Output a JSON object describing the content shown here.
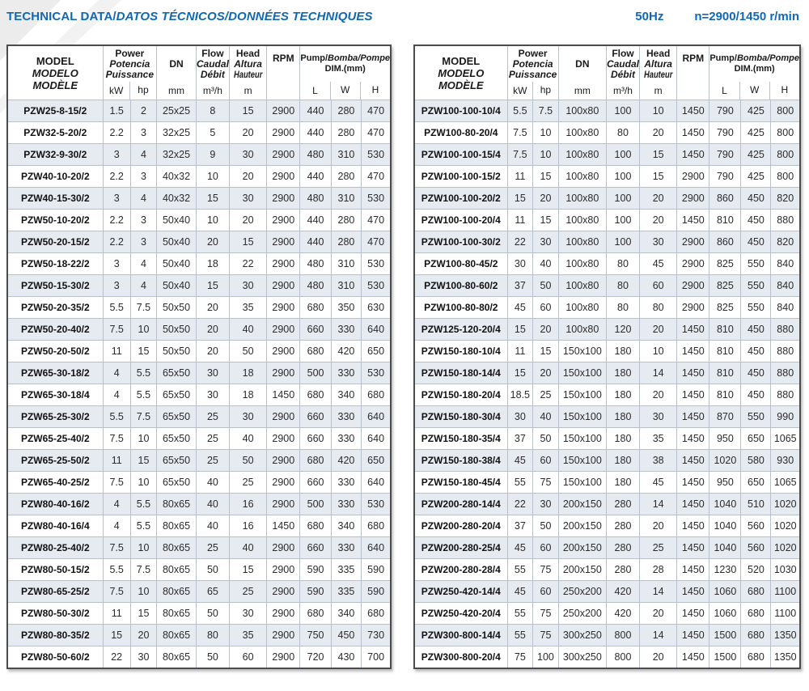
{
  "page": {
    "title_en": "TECHNICAL DATA/",
    "title_intl": "DATOS TÉCNICOS/DONNÉES TECHNIQUES",
    "frequency": "50Hz",
    "speed": "n=2900/1450 r/min",
    "accent_color": "#0f68b4",
    "row_stripe_color": "#e6eaf1"
  },
  "header": {
    "model": [
      "MODEL",
      "MODELO",
      "MODÈLE"
    ],
    "power": [
      "Power",
      "Potencia",
      "Puissance"
    ],
    "power_units": [
      "kW",
      "hp"
    ],
    "dn": "DN",
    "dn_unit": "mm",
    "flow": [
      "Flow",
      "Caudal",
      "Débit"
    ],
    "flow_unit": "m³/h",
    "head": [
      "Head",
      "Altura",
      "Hauteur"
    ],
    "head_unit": "m",
    "rpm": "RPM",
    "dim_en": "Pump/",
    "dim_intl": "Bomba/Pompe",
    "dim_sub": "DIM.(mm)",
    "dim_units": [
      "L",
      "W",
      "H"
    ]
  },
  "left_table": {
    "rows": [
      [
        "PZW25-8-15/2",
        "1.5",
        "2",
        "25x25",
        "8",
        "15",
        "2900",
        "440",
        "280",
        "470"
      ],
      [
        "PZW32-5-20/2",
        "2.2",
        "3",
        "32x25",
        "5",
        "20",
        "2900",
        "440",
        "280",
        "470"
      ],
      [
        "PZW32-9-30/2",
        "3",
        "4",
        "32x25",
        "9",
        "30",
        "2900",
        "480",
        "310",
        "530"
      ],
      [
        "PZW40-10-20/2",
        "2.2",
        "3",
        "40x32",
        "10",
        "20",
        "2900",
        "440",
        "280",
        "470"
      ],
      [
        "PZW40-15-30/2",
        "3",
        "4",
        "40x32",
        "15",
        "30",
        "2900",
        "480",
        "310",
        "530"
      ],
      [
        "PZW50-10-20/2",
        "2.2",
        "3",
        "50x40",
        "10",
        "20",
        "2900",
        "440",
        "280",
        "470"
      ],
      [
        "PZW50-20-15/2",
        "2.2",
        "3",
        "50x40",
        "20",
        "15",
        "2900",
        "440",
        "280",
        "470"
      ],
      [
        "PZW50-18-22/2",
        "3",
        "4",
        "50x40",
        "18",
        "22",
        "2900",
        "480",
        "310",
        "530"
      ],
      [
        "PZW50-15-30/2",
        "3",
        "4",
        "50x40",
        "15",
        "30",
        "2900",
        "480",
        "310",
        "530"
      ],
      [
        "PZW50-20-35/2",
        "5.5",
        "7.5",
        "50x50",
        "20",
        "35",
        "2900",
        "680",
        "350",
        "630"
      ],
      [
        "PZW50-20-40/2",
        "7.5",
        "10",
        "50x50",
        "20",
        "40",
        "2900",
        "660",
        "330",
        "640"
      ],
      [
        "PZW50-20-50/2",
        "11",
        "15",
        "50x50",
        "20",
        "50",
        "2900",
        "680",
        "420",
        "650"
      ],
      [
        "PZW65-30-18/2",
        "4",
        "5.5",
        "65x50",
        "30",
        "18",
        "2900",
        "500",
        "330",
        "530"
      ],
      [
        "PZW65-30-18/4",
        "4",
        "5.5",
        "65x50",
        "30",
        "18",
        "1450",
        "680",
        "340",
        "680"
      ],
      [
        "PZW65-25-30/2",
        "5.5",
        "7.5",
        "65x50",
        "25",
        "30",
        "2900",
        "660",
        "330",
        "640"
      ],
      [
        "PZW65-25-40/2",
        "7.5",
        "10",
        "65x50",
        "25",
        "40",
        "2900",
        "660",
        "330",
        "640"
      ],
      [
        "PZW65-25-50/2",
        "11",
        "15",
        "65x50",
        "25",
        "50",
        "2900",
        "680",
        "420",
        "650"
      ],
      [
        "PZW65-40-25/2",
        "7.5",
        "10",
        "65x50",
        "40",
        "25",
        "2900",
        "660",
        "330",
        "640"
      ],
      [
        "PZW80-40-16/2",
        "4",
        "5.5",
        "80x65",
        "40",
        "16",
        "2900",
        "500",
        "330",
        "530"
      ],
      [
        "PZW80-40-16/4",
        "4",
        "5.5",
        "80x65",
        "40",
        "16",
        "1450",
        "680",
        "340",
        "680"
      ],
      [
        "PZW80-25-40/2",
        "7.5",
        "10",
        "80x65",
        "25",
        "40",
        "2900",
        "660",
        "330",
        "640"
      ],
      [
        "PZW80-50-15/2",
        "5.5",
        "7.5",
        "80x65",
        "50",
        "15",
        "2900",
        "590",
        "335",
        "590"
      ],
      [
        "PZW80-65-25/2",
        "7.5",
        "10",
        "80x65",
        "65",
        "25",
        "2900",
        "590",
        "335",
        "590"
      ],
      [
        "PZW80-50-30/2",
        "11",
        "15",
        "80x65",
        "50",
        "30",
        "2900",
        "680",
        "340",
        "680"
      ],
      [
        "PZW80-80-35/2",
        "15",
        "20",
        "80x65",
        "80",
        "35",
        "2900",
        "750",
        "450",
        "730"
      ],
      [
        "PZW80-50-60/2",
        "22",
        "30",
        "80x65",
        "50",
        "60",
        "2900",
        "720",
        "430",
        "700"
      ]
    ]
  },
  "right_table": {
    "rows": [
      [
        "PZW100-100-10/4",
        "5.5",
        "7.5",
        "100x80",
        "100",
        "10",
        "1450",
        "790",
        "425",
        "800"
      ],
      [
        "PZW100-80-20/4",
        "7.5",
        "10",
        "100x80",
        "80",
        "20",
        "1450",
        "790",
        "425",
        "800"
      ],
      [
        "PZW100-100-15/4",
        "7.5",
        "10",
        "100x80",
        "100",
        "15",
        "1450",
        "790",
        "425",
        "800"
      ],
      [
        "PZW100-100-15/2",
        "11",
        "15",
        "100x80",
        "100",
        "15",
        "2900",
        "790",
        "425",
        "800"
      ],
      [
        "PZW100-100-20/2",
        "15",
        "20",
        "100x80",
        "100",
        "20",
        "2900",
        "860",
        "450",
        "820"
      ],
      [
        "PZW100-100-20/4",
        "11",
        "15",
        "100x80",
        "100",
        "20",
        "1450",
        "810",
        "450",
        "880"
      ],
      [
        "PZW100-100-30/2",
        "22",
        "30",
        "100x80",
        "100",
        "30",
        "2900",
        "860",
        "450",
        "820"
      ],
      [
        "PZW100-80-45/2",
        "30",
        "40",
        "100x80",
        "80",
        "45",
        "2900",
        "825",
        "550",
        "840"
      ],
      [
        "PZW100-80-60/2",
        "37",
        "50",
        "100x80",
        "80",
        "60",
        "2900",
        "825",
        "550",
        "840"
      ],
      [
        "PZW100-80-80/2",
        "45",
        "60",
        "100x80",
        "80",
        "80",
        "2900",
        "825",
        "550",
        "840"
      ],
      [
        "PZW125-120-20/4",
        "15",
        "20",
        "100x80",
        "120",
        "20",
        "1450",
        "810",
        "450",
        "880"
      ],
      [
        "PZW150-180-10/4",
        "11",
        "15",
        "150x100",
        "180",
        "10",
        "1450",
        "810",
        "450",
        "880"
      ],
      [
        "PZW150-180-14/4",
        "15",
        "20",
        "150x100",
        "180",
        "14",
        "1450",
        "810",
        "450",
        "880"
      ],
      [
        "PZW150-180-20/4",
        "18.5",
        "25",
        "150x100",
        "180",
        "20",
        "1450",
        "810",
        "450",
        "880"
      ],
      [
        "PZW150-180-30/4",
        "30",
        "40",
        "150x100",
        "180",
        "30",
        "1450",
        "870",
        "550",
        "990"
      ],
      [
        "PZW150-180-35/4",
        "37",
        "50",
        "150x100",
        "180",
        "35",
        "1450",
        "950",
        "650",
        "1065"
      ],
      [
        "PZW150-180-38/4",
        "45",
        "60",
        "150x100",
        "180",
        "38",
        "1450",
        "1020",
        "580",
        "930"
      ],
      [
        "PZW150-180-45/4",
        "55",
        "75",
        "150x100",
        "180",
        "45",
        "1450",
        "950",
        "650",
        "1065"
      ],
      [
        "PZW200-280-14/4",
        "22",
        "30",
        "200x150",
        "280",
        "14",
        "1450",
        "1040",
        "510",
        "1020"
      ],
      [
        "PZW200-280-20/4",
        "37",
        "50",
        "200x150",
        "280",
        "20",
        "1450",
        "1040",
        "560",
        "1020"
      ],
      [
        "PZW200-280-25/4",
        "45",
        "60",
        "200x150",
        "280",
        "25",
        "1450",
        "1040",
        "560",
        "1020"
      ],
      [
        "PZW200-280-28/4",
        "55",
        "75",
        "200x150",
        "280",
        "28",
        "1450",
        "1230",
        "520",
        "1030"
      ],
      [
        "PZW250-420-14/4",
        "45",
        "60",
        "250x200",
        "420",
        "14",
        "1450",
        "1060",
        "680",
        "1100"
      ],
      [
        "PZW250-420-20/4",
        "55",
        "75",
        "250x200",
        "420",
        "20",
        "1450",
        "1060",
        "680",
        "1100"
      ],
      [
        "PZW300-800-14/4",
        "55",
        "75",
        "300x250",
        "800",
        "14",
        "1450",
        "1500",
        "680",
        "1350"
      ],
      [
        "PZW300-800-20/4",
        "75",
        "100",
        "300x250",
        "800",
        "20",
        "1450",
        "1500",
        "680",
        "1350"
      ]
    ]
  }
}
